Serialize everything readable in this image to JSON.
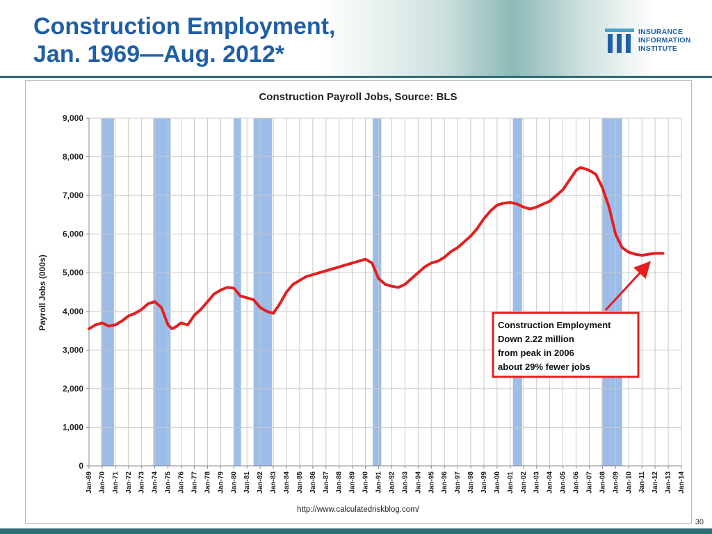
{
  "slide": {
    "title_line1": "Construction Employment,",
    "title_line2": "Jan. 1969—Aug. 2012*",
    "page_number": "30",
    "logo_lines": [
      "INSURANCE",
      "INFORMATION",
      "INSTITUTE"
    ]
  },
  "colors": {
    "title": "#1f5fa7",
    "series_line": "#e31f1f",
    "recession_band": "#9dbde9",
    "callout_border": "#e31f1f",
    "accent_bar": "#2d6d74"
  },
  "chart_data": {
    "type": "line",
    "title": "Construction Payroll Jobs, Source: BLS",
    "ylabel": "Payroll Jobs (000s)",
    "xlabel": "",
    "source": "http://www.calculatedriskblog.com/",
    "ylim": [
      0,
      9000
    ],
    "yticks": [
      "0",
      "1,000",
      "2,000",
      "3,000",
      "4,000",
      "5,000",
      "6,000",
      "7,000",
      "8,000",
      "9,000"
    ],
    "xlim": [
      1969.0,
      2014.0
    ],
    "xtick_labels": [
      "Jan-69",
      "Jan-70",
      "Jan-71",
      "Jan-72",
      "Jan-73",
      "Jan-74",
      "Jan-75",
      "Jan-76",
      "Jan-77",
      "Jan-78",
      "Jan-79",
      "Jan-80",
      "Jan-81",
      "Jan-82",
      "Jan-83",
      "Jan-84",
      "Jan-85",
      "Jan-86",
      "Jan-87",
      "Jan-88",
      "Jan-89",
      "Jan-90",
      "Jan-91",
      "Jan-92",
      "Jan-93",
      "Jan-94",
      "Jan-95",
      "Jan-96",
      "Jan-97",
      "Jan-98",
      "Jan-99",
      "Jan-00",
      "Jan-01",
      "Jan-02",
      "Jan-03",
      "Jan-04",
      "Jan-05",
      "Jan-06",
      "Jan-07",
      "Jan-08",
      "Jan-09",
      "Jan-10",
      "Jan-11",
      "Jan-12",
      "Jan-13",
      "Jan-14"
    ],
    "grid": true,
    "legend": "none",
    "recessions": [
      {
        "start": 1969.92,
        "end": 1970.9
      },
      {
        "start": 1973.88,
        "end": 1975.2
      },
      {
        "start": 1980.0,
        "end": 1980.55
      },
      {
        "start": 1981.5,
        "end": 1982.9
      },
      {
        "start": 1990.55,
        "end": 1991.2
      },
      {
        "start": 2001.2,
        "end": 2001.9
      },
      {
        "start": 2007.95,
        "end": 2009.5
      }
    ],
    "series": [
      {
        "x": [
          1969.0,
          1969.5,
          1970.0,
          1970.5,
          1971.0,
          1971.5,
          1972.0,
          1972.5,
          1973.0,
          1973.5,
          1974.0,
          1974.5,
          1975.0,
          1975.3,
          1975.6,
          1976.0,
          1976.5,
          1977.0,
          1977.5,
          1978.0,
          1978.5,
          1979.0,
          1979.5,
          1980.0,
          1980.5,
          1981.0,
          1981.5,
          1982.0,
          1982.5,
          1983.0,
          1983.5,
          1984.0,
          1984.5,
          1985.0,
          1985.5,
          1986.0,
          1986.5,
          1987.0,
          1987.5,
          1988.0,
          1988.5,
          1989.0,
          1989.5,
          1990.0,
          1990.5,
          1991.0,
          1991.5,
          1992.0,
          1992.5,
          1993.0,
          1993.5,
          1994.0,
          1994.5,
          1995.0,
          1995.5,
          1996.0,
          1996.5,
          1997.0,
          1997.5,
          1998.0,
          1998.5,
          1999.0,
          1999.5,
          2000.0,
          2000.5,
          2001.0,
          2001.5,
          2002.0,
          2002.5,
          2003.0,
          2003.5,
          2004.0,
          2004.5,
          2005.0,
          2005.5,
          2006.0,
          2006.3,
          2006.6,
          2007.0,
          2007.5,
          2008.0,
          2008.5,
          2009.0,
          2009.5,
          2010.0,
          2010.5,
          2011.0,
          2011.5,
          2012.0,
          2012.6
        ],
        "values": [
          3550,
          3650,
          3700,
          3620,
          3650,
          3750,
          3880,
          3950,
          4050,
          4200,
          4250,
          4100,
          3650,
          3550,
          3600,
          3700,
          3650,
          3900,
          4050,
          4250,
          4450,
          4550,
          4620,
          4600,
          4400,
          4350,
          4300,
          4100,
          4000,
          3950,
          4200,
          4500,
          4700,
          4800,
          4900,
          4950,
          5000,
          5050,
          5100,
          5150,
          5200,
          5250,
          5300,
          5350,
          5250,
          4850,
          4700,
          4650,
          4620,
          4700,
          4850,
          5000,
          5150,
          5250,
          5300,
          5400,
          5550,
          5650,
          5800,
          5950,
          6150,
          6400,
          6600,
          6750,
          6800,
          6820,
          6780,
          6700,
          6650,
          6700,
          6780,
          6850,
          7000,
          7150,
          7400,
          7650,
          7720,
          7700,
          7650,
          7550,
          7200,
          6700,
          6000,
          5650,
          5530,
          5480,
          5450,
          5480,
          5500,
          5500
        ]
      }
    ],
    "callout": {
      "lines": [
        "Construction  Employment",
        "Down 2.22 million",
        "from peak in 2006",
        "about 29% fewer jobs"
      ]
    }
  }
}
